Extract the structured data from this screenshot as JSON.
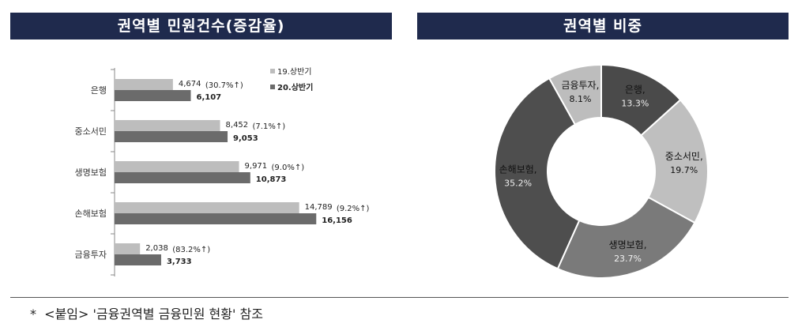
{
  "left_title": "권역별 민원건수(증감율)",
  "right_title": "권역별 비중",
  "footnote": "*  <붙임> '금융권역별 금융민원 현황' 참조",
  "chart_data": [
    {
      "type": "bar",
      "orientation": "horizontal",
      "categories": [
        "은행",
        "중소서민",
        "생명보험",
        "손해보험",
        "금융투자"
      ],
      "series": [
        {
          "name": "19.상반기",
          "values": [
            4674,
            8452,
            9971,
            14789,
            2038
          ],
          "labels": [
            "4,674",
            "8,452",
            "9,971",
            "14,789",
            "2,038"
          ],
          "color": "#bdbdbd"
        },
        {
          "name": "20.상반기",
          "values": [
            6107,
            9053,
            10873,
            16156,
            3733
          ],
          "labels": [
            "6,107",
            "9,053",
            "10,873",
            "16,156",
            "3,733"
          ],
          "color": "#6b6b6b"
        }
      ],
      "annotations": [
        "(30.7%↑)",
        "(7.1%↑)",
        "(9.0%↑)",
        "(9.2%↑)",
        "(83.2%↑)"
      ],
      "legend_position": "top-right",
      "grid": false
    },
    {
      "type": "pie",
      "donut": true,
      "labels": [
        "은행",
        "중소서민",
        "생명보험",
        "손해보험",
        "금융투자"
      ],
      "values": [
        13.3,
        19.7,
        23.7,
        35.2,
        8.1
      ],
      "value_labels": [
        "13.3%",
        "19.7%",
        "23.7%",
        "35.2%",
        "8.1%"
      ],
      "colors": [
        "#4a4a4a",
        "#bfbfbf",
        "#7a7a7a",
        "#4e4e4e",
        "#bdbdbd"
      ]
    }
  ]
}
